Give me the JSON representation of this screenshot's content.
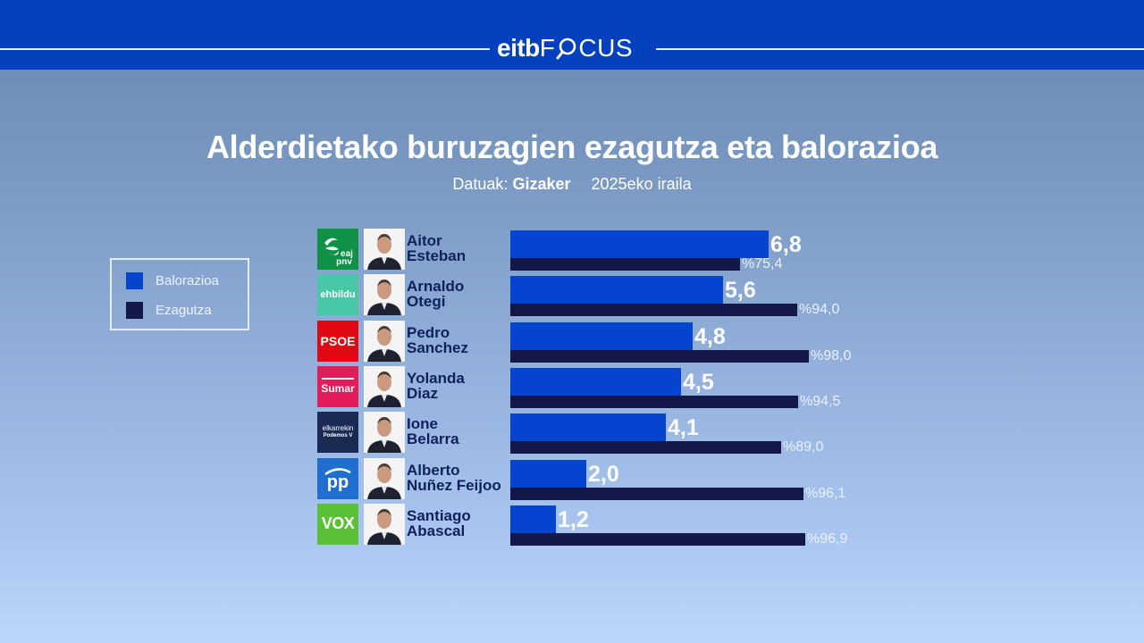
{
  "header": {
    "brand_bold": "eitb",
    "brand_light_pre": "F",
    "brand_light_post": "CUS",
    "brand_icon": "magnifier-icon",
    "color": "#0340be"
  },
  "title": "Alderdietako buruzagien ezagutza eta balorazioa",
  "subtitle": {
    "prefix": "Datuak:",
    "source": "Gizaker",
    "date": "2025eko iraila"
  },
  "legend": [
    {
      "label": "Balorazioa",
      "color": "#0444ce"
    },
    {
      "label": "Ezagutza",
      "color": "#131848"
    }
  ],
  "rows": [
    {
      "first": "Aitor",
      "last": "Esteban",
      "party": "eaj pnv",
      "party_icon": "eaj-pnv-logo-icon",
      "party_color": "#0f9248",
      "rating": 6.8,
      "rating_label": "6,8",
      "known": 75.4,
      "known_label": "%75,4"
    },
    {
      "first": "Arnaldo",
      "last": "Otegi",
      "party": "ehbildu",
      "party_icon": "ehbildu-logo-icon",
      "party_color": "#48c8a8",
      "rating": 5.6,
      "rating_label": "5,6",
      "known": 94.0,
      "known_label": "%94,0"
    },
    {
      "first": "Pedro",
      "last": "Sanchez",
      "party": "PSOE",
      "party_icon": "psoe-logo-icon",
      "party_color": "#e30713",
      "rating": 4.8,
      "rating_label": "4,8",
      "known": 98.0,
      "known_label": "%98,0"
    },
    {
      "first": "Yolanda",
      "last": "Diaz",
      "party": "Sumar",
      "party_icon": "sumar-logo-icon",
      "party_color": "#e51c5a",
      "rating": 4.5,
      "rating_label": "4,5",
      "known": 94.5,
      "known_label": "%94,5"
    },
    {
      "first": "Ione",
      "last": "Belarra",
      "party": "elkarrekin Podemos",
      "party_icon": "elkarrekin-podemos-logo-icon",
      "party_color": "#1b2a55",
      "rating": 4.1,
      "rating_label": "4,1",
      "known": 89.0,
      "known_label": "%89,0"
    },
    {
      "first": "Alberto",
      "last": "Nuñez Feijoo",
      "party": "pp",
      "party_icon": "pp-logo-icon",
      "party_color": "#1f6fd0",
      "rating": 2.0,
      "rating_label": "2,0",
      "known": 96.1,
      "known_label": "%96,1"
    },
    {
      "first": "Santiago",
      "last": "Abascal",
      "party": "VOX",
      "party_icon": "vox-logo-icon",
      "party_color": "#5ac035",
      "rating": 1.2,
      "rating_label": "1,2",
      "known": 96.9,
      "known_label": "%96,9"
    }
  ],
  "chart_data": {
    "type": "bar",
    "orientation": "horizontal",
    "title": "Alderdietako buruzagien ezagutza eta balorazioa",
    "subtitle": "Datuak: Gizaker 2025eko iraila",
    "categories": [
      "Aitor Esteban",
      "Arnaldo Otegi",
      "Pedro Sanchez",
      "Yolanda Diaz",
      "Ione Belarra",
      "Alberto Nuñez Feijoo",
      "Santiago Abascal"
    ],
    "series": [
      {
        "name": "Balorazioa",
        "color": "#0444ce",
        "values": [
          6.8,
          5.6,
          4.8,
          4.5,
          4.1,
          2.0,
          1.2
        ],
        "unit": "0-10 scale"
      },
      {
        "name": "Ezagutza",
        "color": "#131848",
        "values": [
          75.4,
          94.0,
          98.0,
          94.5,
          89.0,
          96.1,
          96.9
        ],
        "unit": "%"
      }
    ],
    "legend_position": "left",
    "grid": false,
    "xlabel": "",
    "ylabel": ""
  }
}
